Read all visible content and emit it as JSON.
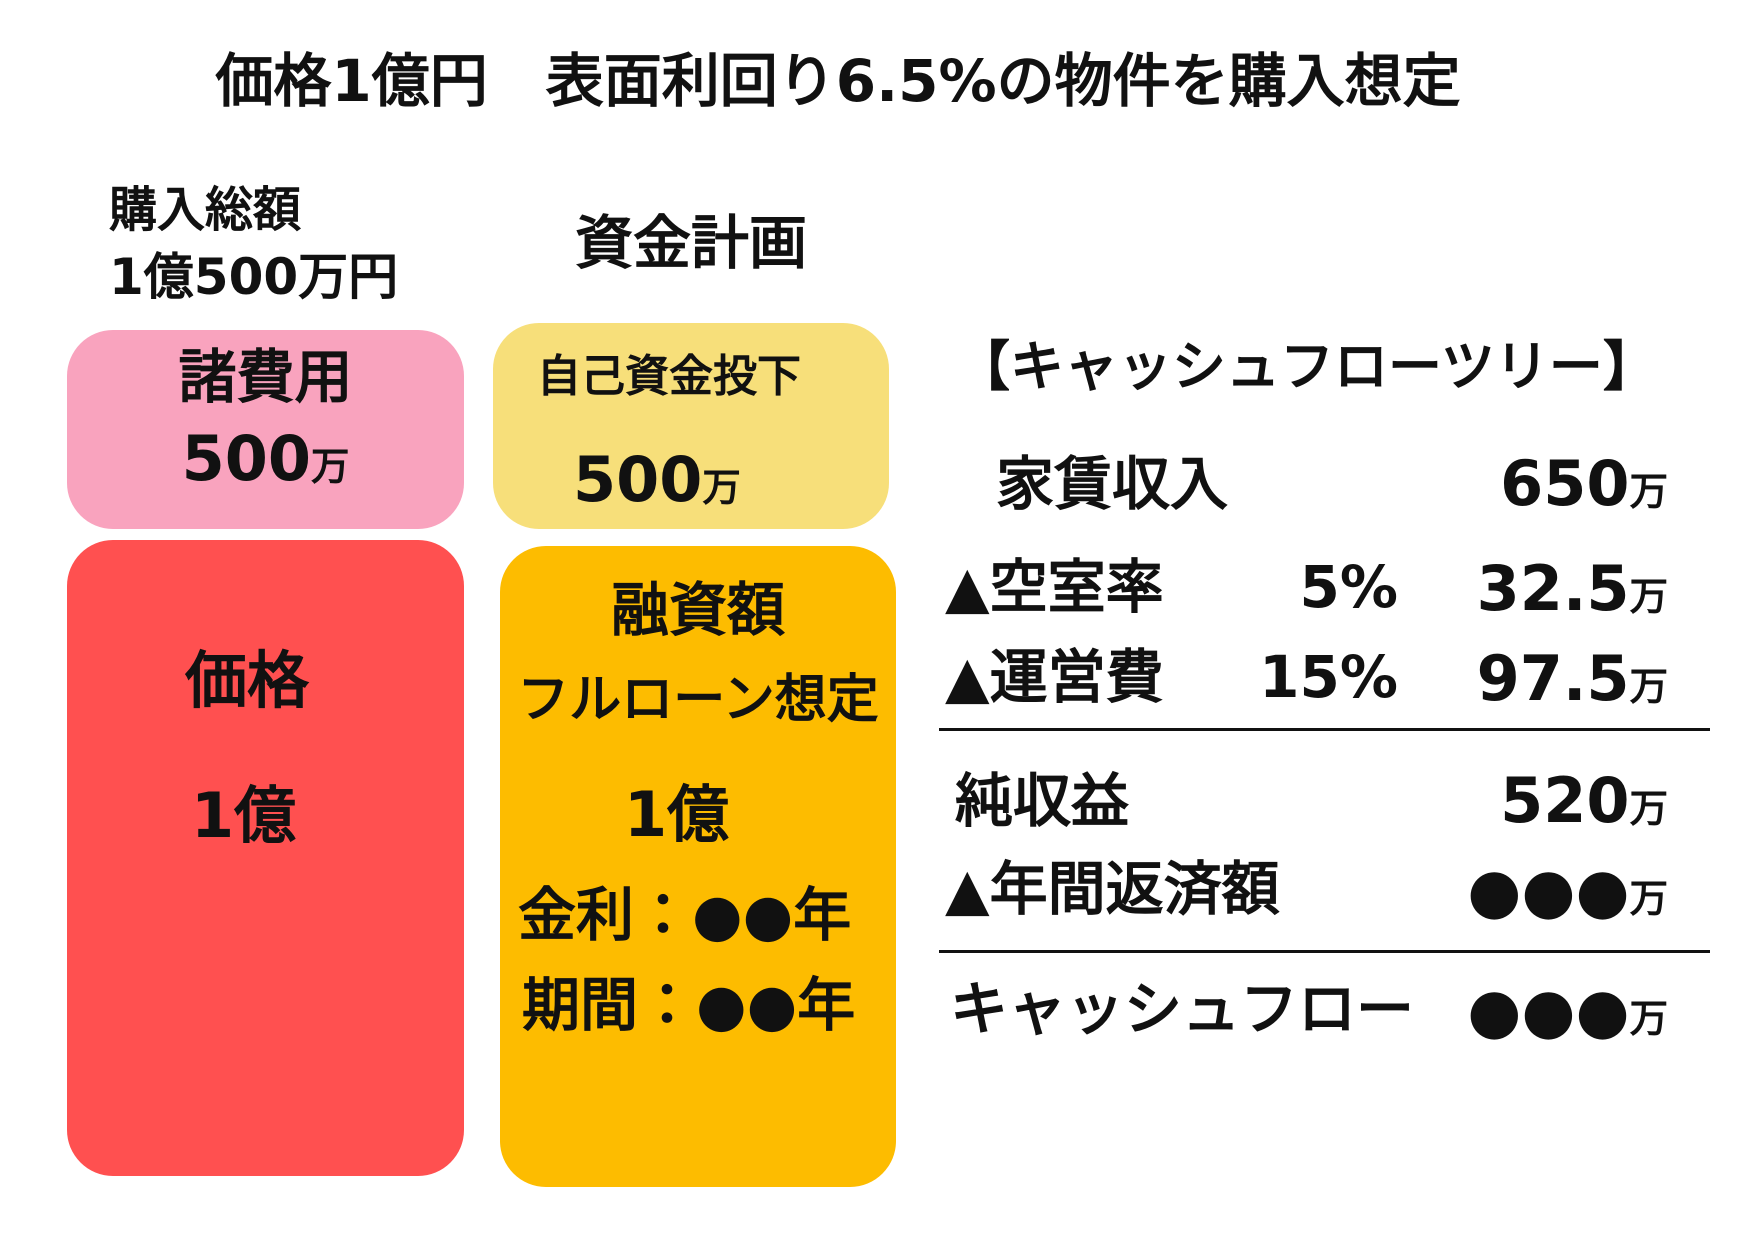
{
  "title": "価格1億円　表面利回り6.5%の物件を購入想定",
  "purchase": {
    "label": "購入総額",
    "amount": "1億500万円"
  },
  "plan_title": "資金計画",
  "boxes": {
    "fees": {
      "label": "諸費用",
      "value": "500",
      "unit": "万"
    },
    "price": {
      "label": "価格",
      "value": "1億"
    },
    "equity": {
      "label": "自己資金投下",
      "value": "500",
      "unit": "万"
    },
    "loan": {
      "label": "融資額",
      "note": "フルローン想定",
      "value": "1億",
      "rate": "金利：●●年",
      "term": "期間：●●年"
    }
  },
  "cashflow": {
    "title": "【キャッシュフローツリー】",
    "rows": [
      {
        "label": "家賃収入",
        "value": "650",
        "unit": "万"
      },
      {
        "label": "▲空室率",
        "rate": "5%",
        "value": "32.5",
        "unit": "万"
      },
      {
        "label": "▲運営費",
        "rate": "15%",
        "value": "97.5",
        "unit": "万"
      },
      {
        "label": "純収益",
        "value": "520",
        "unit": "万"
      },
      {
        "label": "▲年間返済額",
        "value": "●●●",
        "unit": "万"
      },
      {
        "label": "キャッシュフロー",
        "value": "●●●",
        "unit": "万"
      }
    ]
  }
}
